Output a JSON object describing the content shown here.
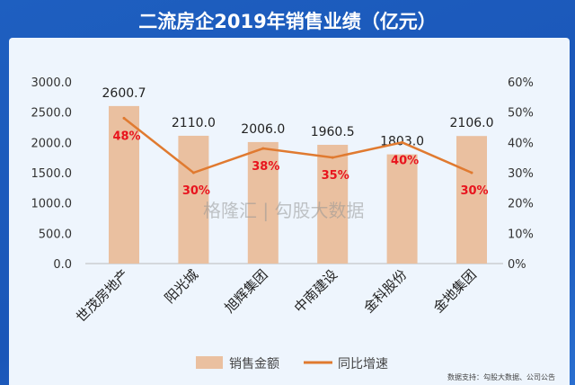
{
  "chart_data": {
    "type": "bar+line",
    "title": "二流房企2019年销售业绩（亿元）",
    "categories": [
      "世茂房地产",
      "阳光城",
      "旭辉集团",
      "中南建设",
      "金科股份",
      "金地集团"
    ],
    "series": [
      {
        "name": "销售金额",
        "type": "bar",
        "axis": "left",
        "color": "#eac0a0",
        "values": [
          2600.7,
          2110.0,
          2006.0,
          1960.5,
          1803.0,
          2106.0
        ],
        "labels": [
          "2600.7",
          "2110.0",
          "2006.0",
          "1960.5",
          "1803.0",
          "2106.0"
        ]
      },
      {
        "name": "同比增速",
        "type": "line",
        "axis": "right",
        "color": "#e07a30",
        "values": [
          48,
          30,
          38,
          35,
          40,
          30
        ],
        "labels": [
          "48%",
          "30%",
          "38%",
          "35%",
          "40%",
          "30%"
        ]
      }
    ],
    "ylim": [
      0,
      3000
    ],
    "y2lim": [
      0,
      60
    ],
    "yticks": [
      "0.0",
      "500.0",
      "1000.0",
      "1500.0",
      "2000.0",
      "2500.0",
      "3000.0"
    ],
    "y2ticks": [
      "0%",
      "10%",
      "20%",
      "30%",
      "40%",
      "50%",
      "60%"
    ],
    "legend": "bottom-center"
  },
  "watermark": "格隆汇 | 勾股大数据",
  "source": "数据支持：勾股大数据、公司公告"
}
